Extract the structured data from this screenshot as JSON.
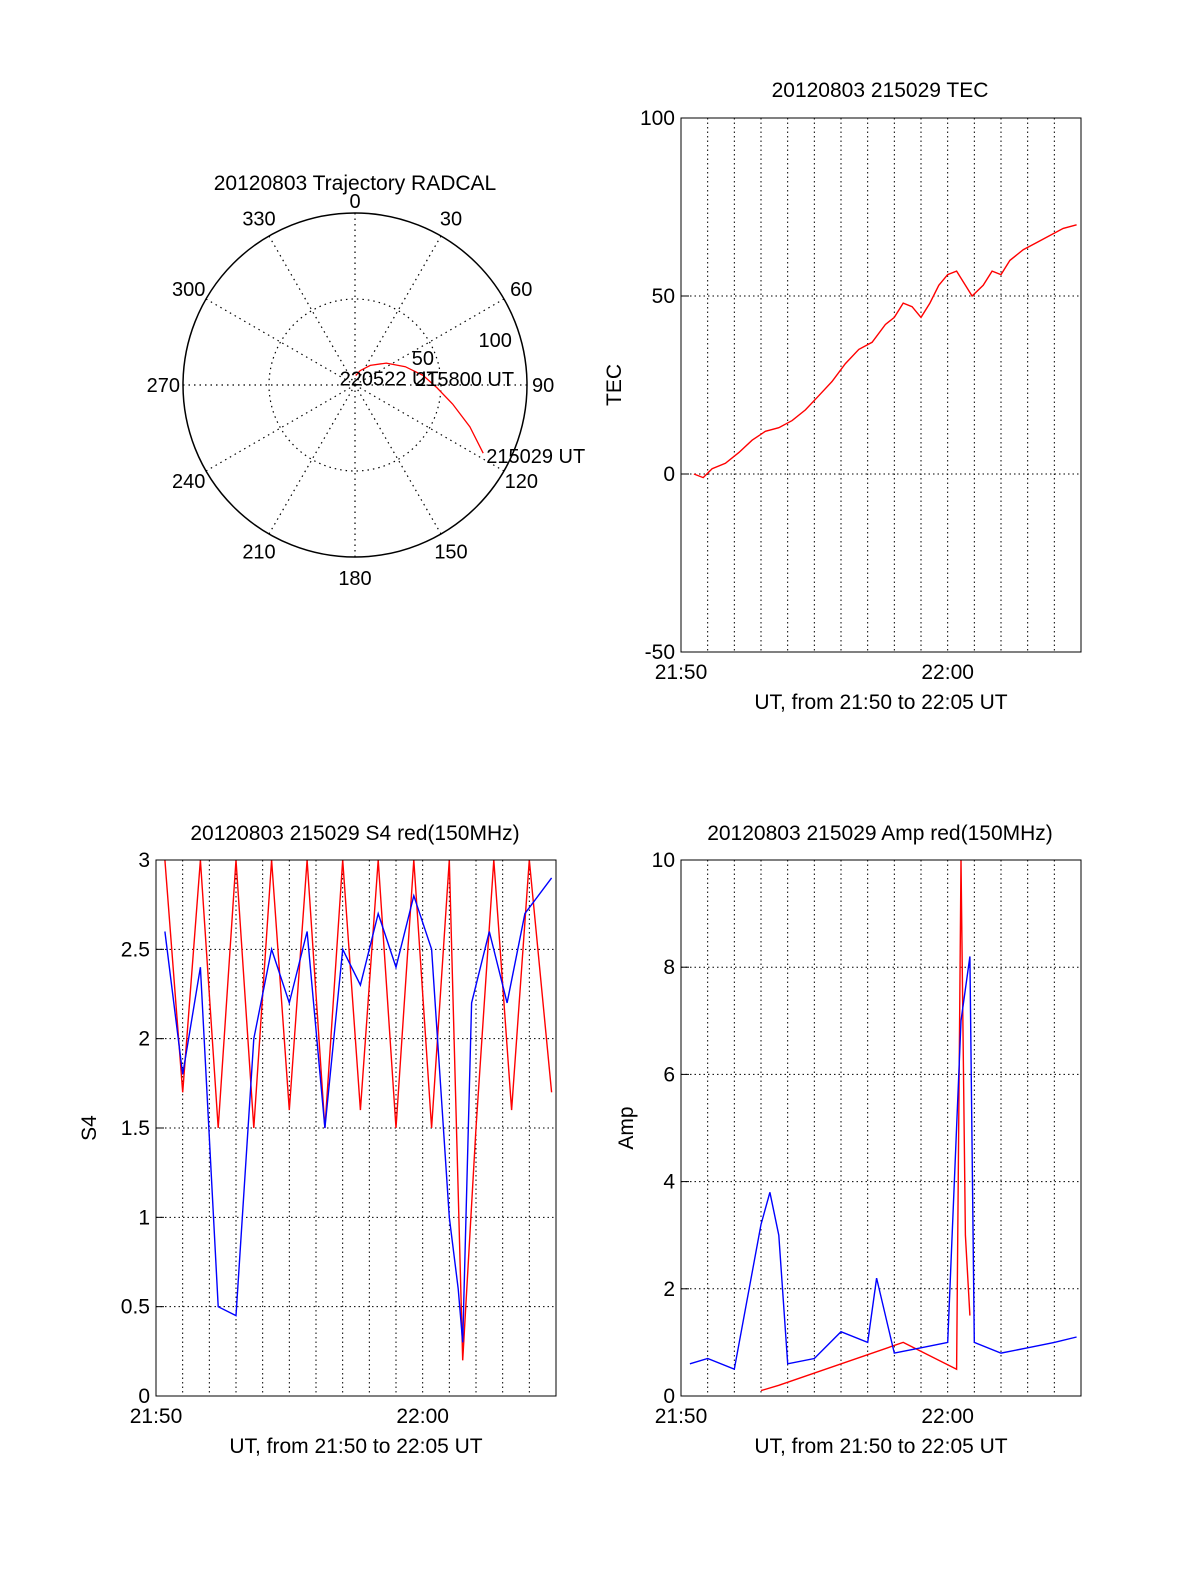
{
  "chart_data": [
    {
      "type": "polar",
      "title": "20120803 Trajectory RADCAL",
      "angle_labels": [
        "0",
        "30",
        "60",
        "90",
        "120",
        "150",
        "180",
        "210",
        "240",
        "270",
        "300",
        "330"
      ],
      "radial_labels": [
        "50",
        "100"
      ],
      "rlim": [
        0,
        100
      ],
      "grid": true,
      "series": [
        {
          "color": "#ff0000",
          "points": [
            {
              "az": 118,
              "el": 14
            },
            {
              "az": 110,
              "el": 26
            },
            {
              "az": 101,
              "el": 38
            },
            {
              "az": 92,
              "el": 47
            },
            {
              "az": 82,
              "el": 54
            },
            {
              "az": 70,
              "el": 62
            },
            {
              "az": 55,
              "el": 70
            },
            {
              "az": 38,
              "el": 77
            },
            {
              "az": 20,
              "el": 82
            },
            {
              "az": 4,
              "el": 85
            }
          ]
        }
      ],
      "annotations": [
        {
          "text": "215029 UT",
          "az": 118,
          "el": 14
        },
        {
          "text": "215800 UT",
          "az": 92,
          "el": 47
        },
        {
          "text": "220522 UT",
          "az": 4,
          "el": 85
        }
      ]
    },
    {
      "type": "line",
      "title": "20120803 215029 TEC",
      "xlabel": "UT, from 21:50 to 22:05 UT",
      "ylabel": "TEC",
      "xlim": [
        "21:50",
        "22:05"
      ],
      "ylim": [
        -50,
        100
      ],
      "x_ticks": [
        "21:50",
        "22:00"
      ],
      "y_ticks": [
        "-50",
        "0",
        "50",
        "100"
      ],
      "grid": true,
      "series": [
        {
          "color": "#ff0000",
          "points": [
            [
              "21:50:29",
              0
            ],
            [
              "21:50:50",
              -1
            ],
            [
              "21:51:10",
              1.5
            ],
            [
              "21:51:40",
              3
            ],
            [
              "21:52:10",
              6
            ],
            [
              "21:52:40",
              9.5
            ],
            [
              "21:53:10",
              12
            ],
            [
              "21:53:40",
              13
            ],
            [
              "21:54:10",
              15
            ],
            [
              "21:54:40",
              18
            ],
            [
              "21:55:10",
              22
            ],
            [
              "21:55:40",
              26
            ],
            [
              "21:56:10",
              31
            ],
            [
              "21:56:40",
              35
            ],
            [
              "21:57:10",
              37
            ],
            [
              "21:57:40",
              42
            ],
            [
              "21:58:00",
              44
            ],
            [
              "21:58:20",
              48
            ],
            [
              "21:58:40",
              47
            ],
            [
              "21:59:00",
              44
            ],
            [
              "21:59:20",
              48
            ],
            [
              "21:59:40",
              53
            ],
            [
              "22:00:00",
              56
            ],
            [
              "22:00:20",
              57
            ],
            [
              "22:00:40",
              53
            ],
            [
              "22:00:55",
              50
            ],
            [
              "22:01:20",
              53
            ],
            [
              "22:01:40",
              57
            ],
            [
              "22:02:00",
              56
            ],
            [
              "22:02:20",
              60
            ],
            [
              "22:02:50",
              63
            ],
            [
              "22:03:20",
              65
            ],
            [
              "22:03:50",
              67
            ],
            [
              "22:04:20",
              69
            ],
            [
              "22:04:50",
              70
            ]
          ]
        }
      ]
    },
    {
      "type": "line",
      "title": "20120803 215029 S4 red(150MHz)",
      "xlabel": "UT, from 21:50 to 22:05 UT",
      "ylabel": "S4",
      "xlim": [
        "21:50",
        "22:05"
      ],
      "ylim": [
        0,
        3
      ],
      "x_ticks": [
        "21:50",
        "22:00"
      ],
      "y_ticks": [
        "0",
        "0.5",
        "1",
        "1.5",
        "2",
        "2.5",
        "3"
      ],
      "grid": true,
      "series": [
        {
          "color": "#ff0000",
          "points": [
            [
              "21:50:20",
              3
            ],
            [
              "21:51:00",
              1.7
            ],
            [
              "21:51:40",
              3
            ],
            [
              "21:52:20",
              1.5
            ],
            [
              "21:53:00",
              3
            ],
            [
              "21:53:40",
              1.5
            ],
            [
              "21:54:20",
              3
            ],
            [
              "21:55:00",
              1.6
            ],
            [
              "21:55:40",
              3
            ],
            [
              "21:56:20",
              1.5
            ],
            [
              "21:57:00",
              3
            ],
            [
              "21:57:40",
              1.6
            ],
            [
              "21:58:20",
              3
            ],
            [
              "21:59:00",
              1.5
            ],
            [
              "21:59:40",
              3
            ],
            [
              "22:00:20",
              1.5
            ],
            [
              "22:01:00",
              3
            ],
            [
              "22:01:30",
              0.2
            ],
            [
              "22:02:00",
              1.5
            ],
            [
              "22:02:40",
              3
            ],
            [
              "22:03:20",
              1.6
            ],
            [
              "22:04:00",
              3
            ],
            [
              "22:04:50",
              1.7
            ]
          ]
        },
        {
          "color": "#0000ff",
          "points": [
            [
              "21:50:20",
              2.6
            ],
            [
              "21:51:00",
              1.8
            ],
            [
              "21:51:40",
              2.4
            ],
            [
              "21:52:20",
              0.5
            ],
            [
              "21:53:00",
              0.45
            ],
            [
              "21:53:40",
              2.0
            ],
            [
              "21:54:20",
              2.5
            ],
            [
              "21:55:00",
              2.2
            ],
            [
              "21:55:40",
              2.6
            ],
            [
              "21:56:20",
              1.5
            ],
            [
              "21:57:00",
              2.5
            ],
            [
              "21:57:40",
              2.3
            ],
            [
              "21:58:20",
              2.7
            ],
            [
              "21:59:00",
              2.4
            ],
            [
              "21:59:40",
              2.8
            ],
            [
              "22:00:20",
              2.5
            ],
            [
              "22:01:00",
              1.0
            ],
            [
              "22:01:20",
              0.6
            ],
            [
              "22:01:30",
              0.3
            ],
            [
              "22:01:50",
              2.2
            ],
            [
              "22:02:30",
              2.6
            ],
            [
              "22:03:10",
              2.2
            ],
            [
              "22:03:50",
              2.7
            ],
            [
              "22:04:50",
              2.9
            ]
          ]
        }
      ]
    },
    {
      "type": "line",
      "title": "20120803 215029 Amp red(150MHz)",
      "xlabel": "UT, from 21:50 to 22:05 UT",
      "ylabel": "Amp",
      "xlim": [
        "21:50",
        "22:05"
      ],
      "ylim": [
        0,
        10
      ],
      "x_ticks": [
        "21:50",
        "22:00"
      ],
      "y_ticks": [
        "0",
        "2",
        "4",
        "6",
        "8",
        "10"
      ],
      "grid": true,
      "series": [
        {
          "color": "#ff0000",
          "points": [
            [
              "21:53:00",
              0.1
            ],
            [
              "21:53:40",
              0.2
            ],
            [
              "21:58:20",
              1.0
            ],
            [
              "22:00:20",
              0.5
            ],
            [
              "22:00:30",
              10
            ],
            [
              "22:00:40",
              3
            ],
            [
              "22:00:50",
              1.5
            ]
          ]
        },
        {
          "color": "#0000ff",
          "points": [
            [
              "21:50:20",
              0.6
            ],
            [
              "21:51:00",
              0.7
            ],
            [
              "21:52:00",
              0.5
            ],
            [
              "21:53:00",
              3.2
            ],
            [
              "21:53:20",
              3.8
            ],
            [
              "21:53:40",
              3.0
            ],
            [
              "21:54:00",
              0.6
            ],
            [
              "21:55:00",
              0.7
            ],
            [
              "21:56:00",
              1.2
            ],
            [
              "21:57:00",
              1.0
            ],
            [
              "21:57:20",
              2.2
            ],
            [
              "21:58:00",
              0.8
            ],
            [
              "21:59:00",
              0.9
            ],
            [
              "22:00:00",
              1.0
            ],
            [
              "22:00:30",
              7.0
            ],
            [
              "22:00:50",
              8.2
            ],
            [
              "22:01:00",
              1.0
            ],
            [
              "22:02:00",
              0.8
            ],
            [
              "22:03:00",
              0.9
            ],
            [
              "22:04:00",
              1.0
            ],
            [
              "22:04:50",
              1.1
            ]
          ]
        }
      ]
    }
  ]
}
